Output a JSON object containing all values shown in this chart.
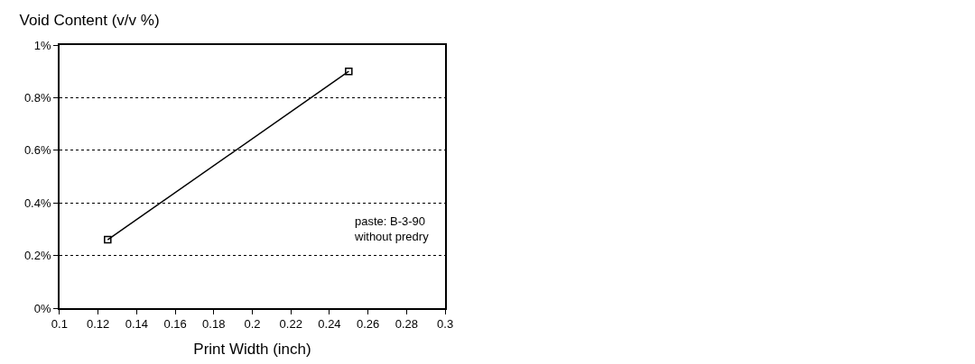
{
  "chart_data": {
    "type": "line",
    "title": "Void Content (v/v %)",
    "xlabel": "Print Width (inch)",
    "x": [
      0.125,
      0.25
    ],
    "series": [
      {
        "color": "#000000",
        "values": [
          0.26,
          0.9
        ]
      }
    ],
    "xlim": [
      0.1,
      0.3
    ],
    "xticks": [
      0.1,
      0.12,
      0.14,
      0.16,
      0.18,
      0.2,
      0.22,
      0.24,
      0.26,
      0.28,
      0.3
    ],
    "ylim": [
      0,
      1
    ],
    "yticks": [
      {
        "value": 0,
        "label": "0%"
      },
      {
        "value": 0.2,
        "label": "0.2%"
      },
      {
        "value": 0.4,
        "label": "0.4%"
      },
      {
        "value": 0.6,
        "label": "0.6%"
      },
      {
        "value": 0.8,
        "label": "0.8%"
      },
      {
        "value": 1,
        "label": "1%"
      }
    ],
    "grid": "y",
    "marker": "square",
    "line_style": "solid",
    "annotations": [
      "paste: B-3-90\nwithout predry"
    ]
  }
}
